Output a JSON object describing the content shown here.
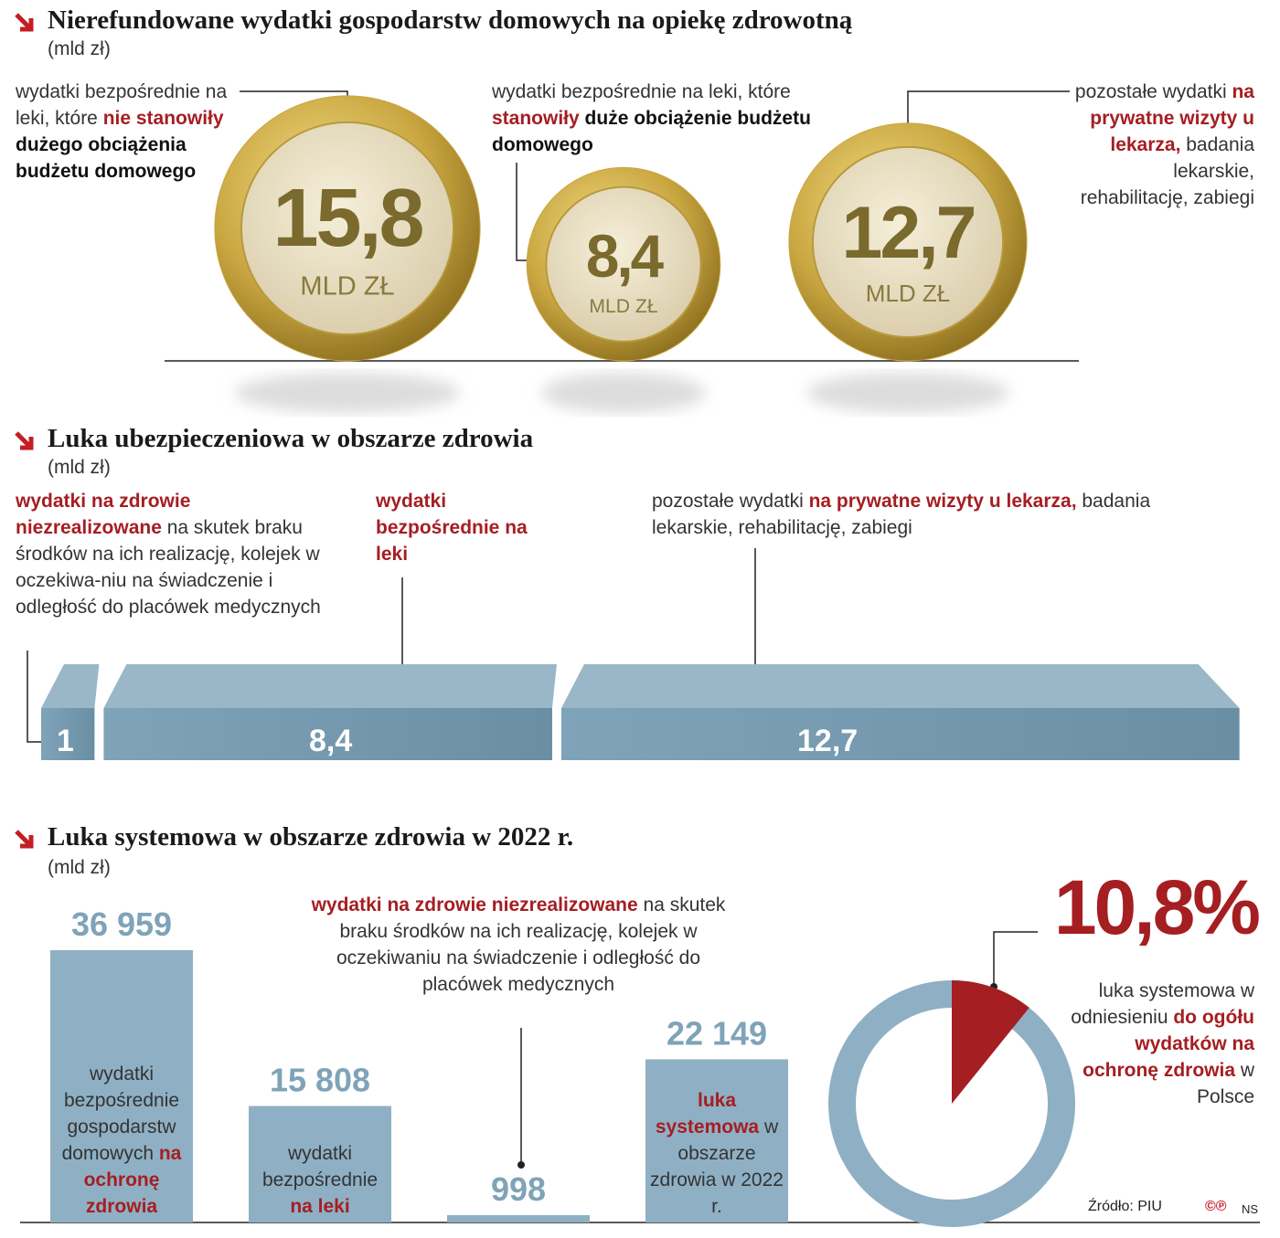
{
  "chart_data": [
    {
      "type": "coin",
      "title": "Nierefundowane wydatki gospodarstw domowych na opiekę zdrowotną",
      "subtitle": "(mld zł)",
      "values": [
        15.8,
        8.4,
        12.7
      ],
      "value_labels": [
        "15,8",
        "8,4",
        "12,7"
      ],
      "unit": "MLD ZŁ",
      "color": "#c9a640",
      "notes": [
        [
          {
            "text": "wydatki bezpośrednie na leki, które "
          },
          {
            "text": "nie stanowiły",
            "color": "#a51e22",
            "bold": true
          },
          {
            "text": " dużego obciążenia budżetu domowego",
            "bold": true
          }
        ],
        [
          {
            "text": "wydatki bezpośrednie na leki, które "
          },
          {
            "text": "stanowiły",
            "color": "#a51e22",
            "bold": true
          },
          {
            "text": " duże obciążenie budżetu domowego",
            "bold": true
          }
        ],
        [
          {
            "text": "pozostałe wydatki "
          },
          {
            "text": "na prywatne wizyty u lekarza,",
            "color": "#a51e22",
            "bold": true
          },
          {
            "text": " badania lekarskie, rehabilitację, zabiegi"
          }
        ]
      ]
    },
    {
      "type": "slab",
      "title": "Luka ubezpieczeniowa w obszarze zdrowia",
      "subtitle": "(mld zł)",
      "values": [
        1,
        8.4,
        12.7
      ],
      "value_labels": [
        "1",
        "8,4",
        "12,7"
      ],
      "color": "#7fa3b8",
      "notes": [
        [
          {
            "text": "wydatki na zdrowie niezrealizowane",
            "color": "#a51e22",
            "bold": true
          },
          {
            "text": " na skutek braku środków na ich realizację, kolejek w oczekiwa-niu na świadczenie i odległość do placówek medycznych"
          }
        ],
        [
          {
            "text": "wydatki bezpośrednie na leki",
            "color": "#a51e22",
            "bold": true
          }
        ],
        [
          {
            "text": "pozostałe wydatki "
          },
          {
            "text": "na prywatne wizyty u lekarza,",
            "color": "#a51e22",
            "bold": true
          },
          {
            "text": " badania lekarskie, rehabilitację, zabiegi"
          }
        ]
      ]
    },
    {
      "type": "bar",
      "title": "Luka systemowa w obszarze zdrowia w 2022 r.",
      "subtitle": "(mld zł)",
      "values": [
        36959,
        15808,
        998,
        22149
      ],
      "value_labels": [
        "36 959",
        "15 808",
        "998",
        "22 149"
      ],
      "color": "#8fb0c4",
      "labels": [
        [
          {
            "text": "wydatki bezpośrednie gospodarstw domowych "
          },
          {
            "text": "na ochronę zdrowia",
            "color": "#a51e22",
            "bold": true
          }
        ],
        [
          {
            "text": "wydatki bezpośrednie "
          },
          {
            "text": "na leki",
            "color": "#a51e22",
            "bold": true
          }
        ],
        [
          {
            "text": "wydatki na zdrowie niezrealizowane",
            "color": "#a51e22",
            "bold": true
          },
          {
            "text": " na skutek braku środków na ich realizację, kolejek w oczekiwaniu na świadczenie i odległość do placówek medycznych"
          }
        ],
        [
          {
            "text": "luka systemowa",
            "color": "#a51e22",
            "bold": true
          },
          {
            "text": " w obszarze zdrowia w 2022 r."
          }
        ]
      ],
      "share": 10.8,
      "share_label": "10,8%",
      "share_color": "#a51e22",
      "share_note": [
        {
          "text": "luka systemowa w odniesieniu "
        },
        {
          "text": "do ogółu wydatków na ochronę zdrowia",
          "color": "#a51e22",
          "bold": true
        },
        {
          "text": " w Polsce"
        }
      ]
    }
  ],
  "source": "Źródło: PIU",
  "credit": "NS"
}
